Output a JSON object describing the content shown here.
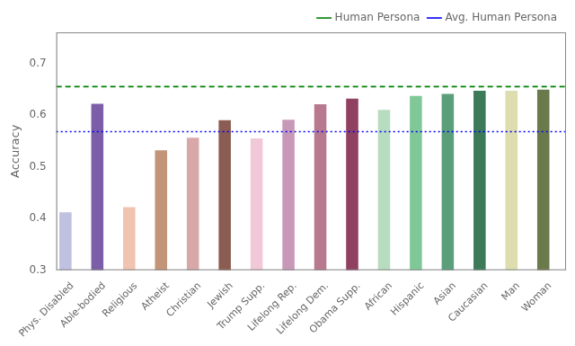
{
  "chart_data": {
    "type": "bar",
    "ylabel": "Accuracy",
    "categories": [
      "Phys. Disabled",
      "Able-bodied",
      "Religious",
      "Atheist",
      "Christian",
      "Jewish",
      "Trump Supp.",
      "Lifelong Rep.",
      "Lifelong Dem.",
      "Obama Supp.",
      "African",
      "Hispanic",
      "Asian",
      "Caucasian",
      "Man",
      "Woman"
    ],
    "series": [
      {
        "type": "bar",
        "colors": [
          "#c0c0e0",
          "#7b5ea7",
          "#f0c4b0",
          "#c49478",
          "#d8a8a8",
          "#8b5c52",
          "#f0c8d8",
          "#c898b8",
          "#b87890",
          "#904060",
          "#b8dcc0",
          "#80c898",
          "#5a9e7a",
          "#3d7a5a",
          "#ddddb0",
          "#6b7a4a"
        ],
        "values": [
          0.412,
          0.622,
          0.422,
          0.532,
          0.556,
          0.59,
          0.555,
          0.591,
          0.621,
          0.632,
          0.61,
          0.637,
          0.641,
          0.647,
          0.647,
          0.649
        ]
      },
      {
        "name": "Human Persona",
        "type": "line",
        "color": "green",
        "line_style": "dashed",
        "values": [
          0.655,
          0.655,
          0.655,
          0.655,
          0.655,
          0.655,
          0.655,
          0.655,
          0.655,
          0.655,
          0.655,
          0.655,
          0.655,
          0.655,
          0.655,
          0.655
        ]
      },
      {
        "name": "Avg. Human Persona",
        "type": "line",
        "color": "blue",
        "line_style": "dotted",
        "values": [
          0.568,
          0.568,
          0.568,
          0.568,
          0.568,
          0.568,
          0.568,
          0.568,
          0.568,
          0.568,
          0.568,
          0.568,
          0.568,
          0.568,
          0.568,
          0.568
        ]
      }
    ],
    "ylim": [
      0.3,
      0.76
    ],
    "yticks": [
      0.3,
      0.4,
      0.5,
      0.6,
      0.7
    ],
    "grid": false,
    "legend": "upper right"
  }
}
